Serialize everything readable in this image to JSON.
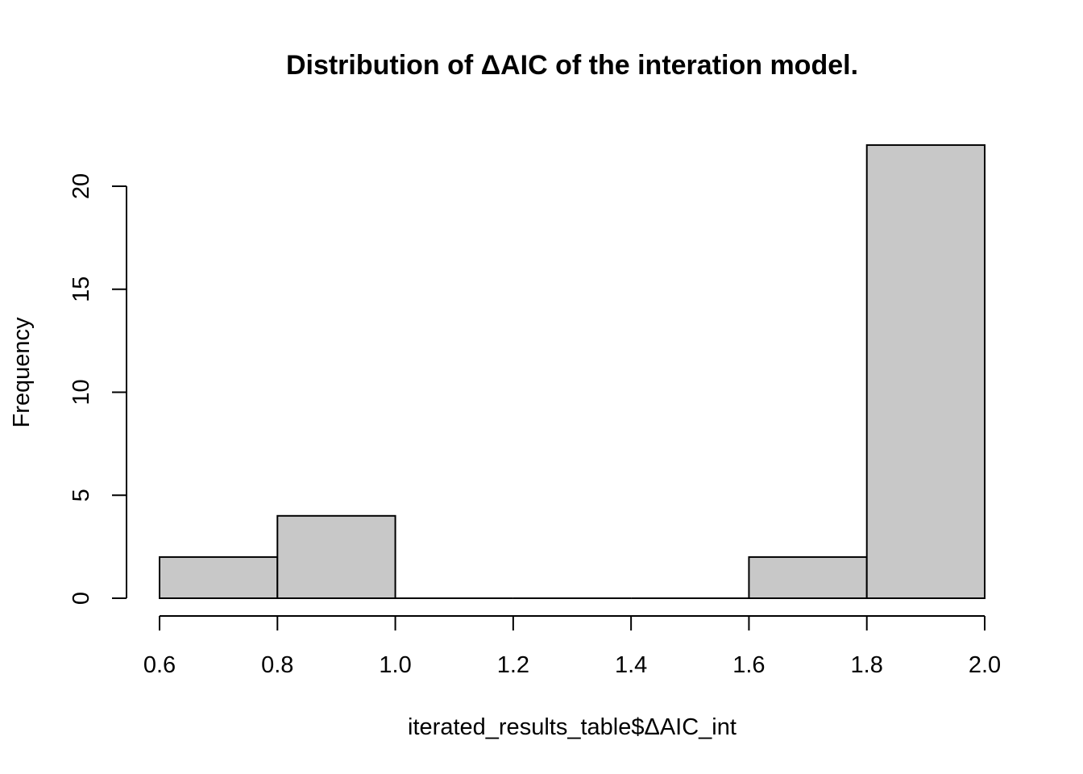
{
  "chart_data": {
    "type": "bar",
    "title": "Distribution of ΔAIC of the interation model.",
    "xlabel": "iterated_results_table$ΔAIC_int",
    "ylabel": "Frequency",
    "bins": [
      {
        "x0": 0.6,
        "x1": 0.8,
        "count": 2
      },
      {
        "x0": 0.8,
        "x1": 1.0,
        "count": 4
      },
      {
        "x0": 1.0,
        "x1": 1.2,
        "count": 0
      },
      {
        "x0": 1.2,
        "x1": 1.4,
        "count": 0
      },
      {
        "x0": 1.4,
        "x1": 1.6,
        "count": 0
      },
      {
        "x0": 1.6,
        "x1": 1.8,
        "count": 2
      },
      {
        "x0": 1.8,
        "x1": 2.0,
        "count": 22
      }
    ],
    "xlim": [
      0.6,
      2.0
    ],
    "ylim": [
      0,
      22
    ],
    "x_ticks": [
      "0.6",
      "0.8",
      "1.0",
      "1.2",
      "1.4",
      "1.6",
      "1.8",
      "2.0"
    ],
    "y_ticks": [
      "0",
      "5",
      "10",
      "15",
      "20"
    ],
    "bar_fill": "#c8c8c8",
    "bar_stroke": "#000000",
    "grid": false,
    "legend": "none"
  }
}
